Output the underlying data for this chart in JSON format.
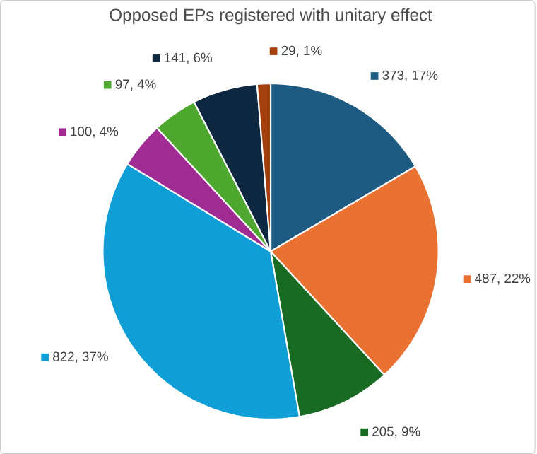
{
  "chart_data": {
    "type": "pie",
    "title": "Opposed EPs registered with unitary effect",
    "categories": [
      null,
      null,
      null,
      null,
      null,
      null,
      null,
      null
    ],
    "values": [
      373,
      487,
      205,
      822,
      100,
      97,
      141,
      29
    ],
    "value_labels": [
      "373, 17%",
      "487, 22%",
      "205, 9%",
      "822, 37%",
      "100, 4%",
      "97, 4%",
      "141, 6%",
      "29, 1%"
    ],
    "colors": [
      "#1e5b82",
      "#e97132",
      "#196b24",
      "#0f9ed5",
      "#a02b93",
      "#4ea72e",
      "#0e2841",
      "#a4400d"
    ]
  }
}
